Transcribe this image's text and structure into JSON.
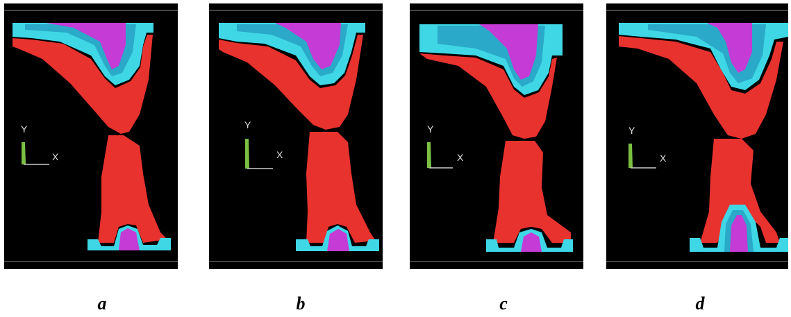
{
  "panels": [
    {
      "id": "a",
      "caption": "a",
      "axis_y": "Y",
      "axis_x": "X"
    },
    {
      "id": "b",
      "caption": "b",
      "axis_y": "Y",
      "axis_x": "X"
    },
    {
      "id": "c",
      "caption": "c",
      "axis_y": "Y",
      "axis_x": "X"
    },
    {
      "id": "d",
      "caption": "d",
      "axis_y": "Y",
      "axis_x": "X"
    }
  ],
  "colors": {
    "background": "#000000",
    "workpiece": "#e8322e",
    "die_outer": "#3fd7e6",
    "die_inner": "#2aa9c8",
    "die_core": "#c43bd6",
    "axis_triad": "#7bc043"
  }
}
